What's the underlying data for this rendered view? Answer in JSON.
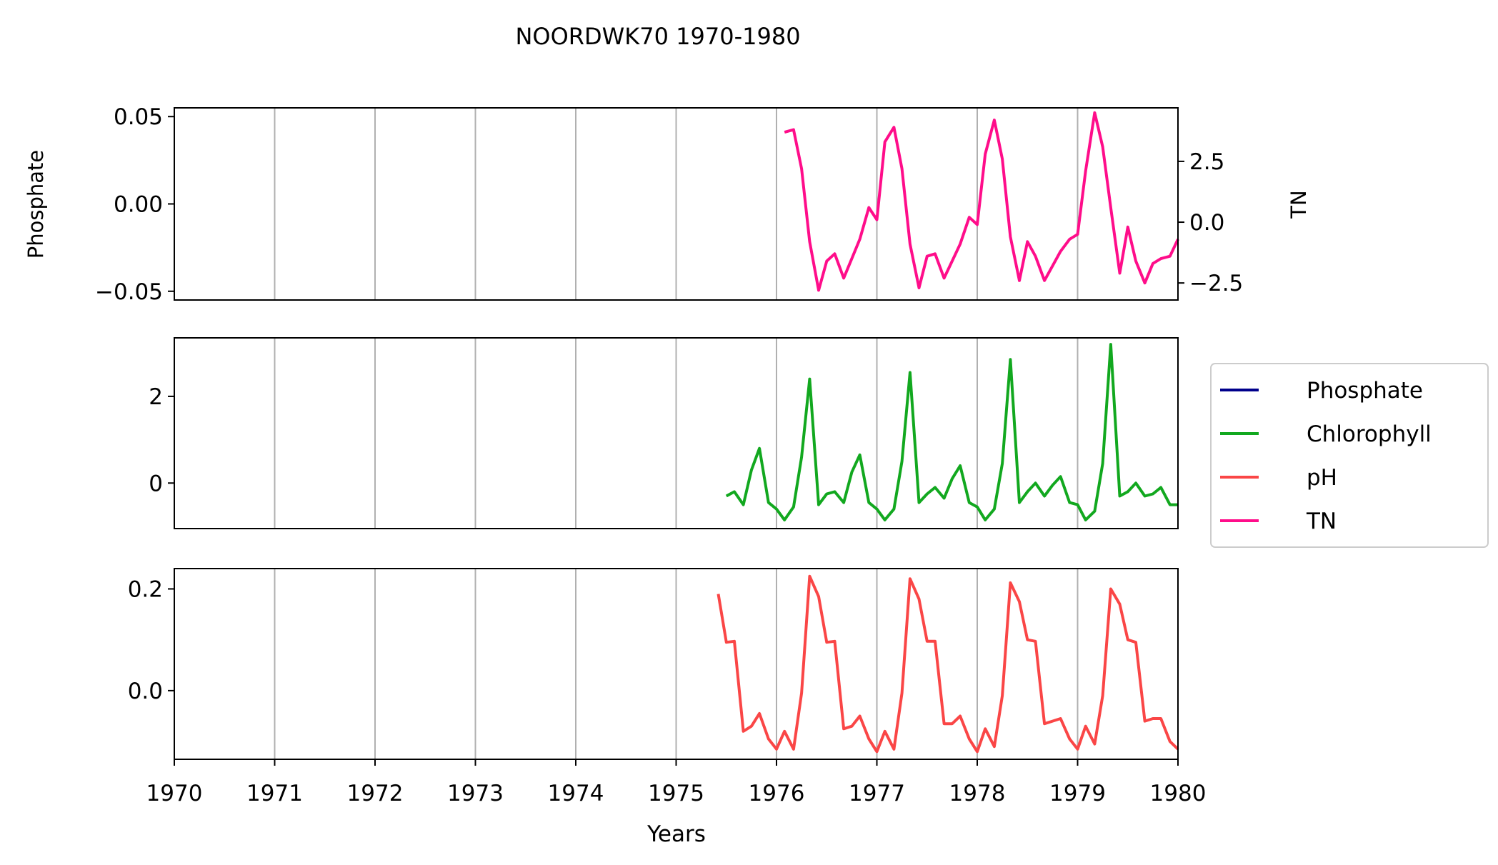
{
  "chart_data": {
    "type": "line",
    "title": "NOORDWK70 1970-1980",
    "xlabel": "Years",
    "xlim": [
      1970,
      1980
    ],
    "xticks": [
      "1970",
      "1971",
      "1972",
      "1973",
      "1974",
      "1975",
      "1976",
      "1977",
      "1978",
      "1979",
      "1980"
    ],
    "grid": "vertical",
    "legend_position": "right",
    "legend": [
      {
        "name": "Phosphate",
        "color": "#00008b"
      },
      {
        "name": "Chlorophyll",
        "color": "#12a81f"
      },
      {
        "name": "pH",
        "color": "#fa4646"
      },
      {
        "name": "TN",
        "color": "#ff0d8a"
      }
    ],
    "panels": [
      {
        "id": "top",
        "ylabel_left": "Phosphate",
        "ylabel_right": "TN",
        "ylim_left": [
          -0.055,
          0.055
        ],
        "yticks_left": [
          "0.05",
          "0.00",
          "−0.05"
        ],
        "ylim_right": [
          -3.2,
          4.7
        ],
        "yticks_right": [
          "2.5",
          "0.0",
          "−2.5"
        ],
        "series": [
          {
            "name": "TN",
            "axis": "right",
            "color": "#ff0d8a",
            "x": [
              1976.08,
              1976.17,
              1976.25,
              1976.33,
              1976.42,
              1976.5,
              1976.58,
              1976.67,
              1976.75,
              1976.83,
              1976.92,
              1977.0,
              1977.08,
              1977.17,
              1977.25,
              1977.33,
              1977.42,
              1977.5,
              1977.58,
              1977.67,
              1977.75,
              1977.83,
              1977.92,
              1978.0,
              1978.08,
              1978.17,
              1978.25,
              1978.33,
              1978.42,
              1978.5,
              1978.58,
              1978.67,
              1978.75,
              1978.83,
              1978.92,
              1979.0,
              1979.08,
              1979.17,
              1979.25,
              1979.33,
              1979.42,
              1979.5,
              1979.58,
              1979.67,
              1979.75,
              1979.83,
              1979.92,
              1980.0
            ],
            "y": [
              3.7,
              3.8,
              2.2,
              -0.8,
              -2.8,
              -1.6,
              -1.3,
              -2.3,
              -1.5,
              -0.7,
              0.6,
              0.1,
              3.3,
              3.9,
              2.2,
              -0.9,
              -2.7,
              -1.4,
              -1.3,
              -2.3,
              -1.6,
              -0.9,
              0.2,
              -0.1,
              2.8,
              4.2,
              2.6,
              -0.6,
              -2.4,
              -0.8,
              -1.4,
              -2.4,
              -1.8,
              -1.2,
              -0.7,
              -0.5,
              2.1,
              4.5,
              3.1,
              0.6,
              -2.1,
              -0.2,
              -1.6,
              -2.5,
              -1.7,
              -1.5,
              -1.4,
              -0.7
            ]
          }
        ]
      },
      {
        "id": "middle",
        "ylim": [
          -1.05,
          3.35
        ],
        "yticks": [
          "2",
          "0"
        ],
        "series": [
          {
            "name": "Chlorophyll",
            "color": "#12a81f",
            "x": [
              1975.5,
              1975.58,
              1975.67,
              1975.75,
              1975.83,
              1975.92,
              1976.0,
              1976.08,
              1976.17,
              1976.25,
              1976.33,
              1976.42,
              1976.5,
              1976.58,
              1976.67,
              1976.75,
              1976.83,
              1976.92,
              1977.0,
              1977.08,
              1977.17,
              1977.25,
              1977.33,
              1977.42,
              1977.5,
              1977.58,
              1977.67,
              1977.75,
              1977.83,
              1977.92,
              1978.0,
              1978.08,
              1978.17,
              1978.25,
              1978.33,
              1978.42,
              1978.5,
              1978.58,
              1978.67,
              1978.75,
              1978.83,
              1978.92,
              1979.0,
              1979.08,
              1979.17,
              1979.25,
              1979.33,
              1979.42,
              1979.5,
              1979.58,
              1979.67,
              1979.75,
              1979.83,
              1979.92,
              1980.0
            ],
            "y": [
              -0.3,
              -0.2,
              -0.5,
              0.3,
              0.8,
              -0.45,
              -0.6,
              -0.85,
              -0.55,
              0.6,
              2.4,
              -0.5,
              -0.25,
              -0.2,
              -0.45,
              0.25,
              0.65,
              -0.45,
              -0.6,
              -0.85,
              -0.6,
              0.5,
              2.55,
              -0.45,
              -0.25,
              -0.1,
              -0.35,
              0.1,
              0.4,
              -0.45,
              -0.55,
              -0.85,
              -0.6,
              0.45,
              2.85,
              -0.45,
              -0.2,
              0.0,
              -0.3,
              -0.05,
              0.15,
              -0.45,
              -0.5,
              -0.85,
              -0.65,
              0.45,
              3.2,
              -0.3,
              -0.2,
              0.0,
              -0.3,
              -0.25,
              -0.1,
              -0.5,
              -0.5
            ]
          }
        ]
      },
      {
        "id": "bottom",
        "ylim": [
          -0.135,
          0.24
        ],
        "yticks": [
          "0.2",
          "0.0"
        ],
        "series": [
          {
            "name": "pH",
            "color": "#fa4646",
            "x": [
              1975.42,
              1975.5,
              1975.58,
              1975.67,
              1975.75,
              1975.83,
              1975.92,
              1976.0,
              1976.08,
              1976.17,
              1976.25,
              1976.33,
              1976.42,
              1976.5,
              1976.58,
              1976.67,
              1976.75,
              1976.83,
              1976.92,
              1977.0,
              1977.08,
              1977.17,
              1977.25,
              1977.33,
              1977.42,
              1977.5,
              1977.58,
              1977.67,
              1977.75,
              1977.83,
              1977.92,
              1978.0,
              1978.08,
              1978.17,
              1978.25,
              1978.33,
              1978.42,
              1978.5,
              1978.58,
              1978.67,
              1978.75,
              1978.83,
              1978.92,
              1979.0,
              1979.08,
              1979.17,
              1979.25,
              1979.33,
              1979.42,
              1979.5,
              1979.58,
              1979.67,
              1979.75,
              1979.83,
              1979.92,
              1980.0
            ],
            "y": [
              0.19,
              0.095,
              0.097,
              -0.08,
              -0.07,
              -0.045,
              -0.095,
              -0.115,
              -0.08,
              -0.115,
              -0.005,
              0.225,
              0.185,
              0.095,
              0.097,
              -0.075,
              -0.07,
              -0.05,
              -0.095,
              -0.12,
              -0.08,
              -0.115,
              -0.005,
              0.22,
              0.18,
              0.097,
              0.097,
              -0.065,
              -0.065,
              -0.05,
              -0.095,
              -0.12,
              -0.075,
              -0.11,
              -0.01,
              0.212,
              0.175,
              0.1,
              0.097,
              -0.065,
              -0.06,
              -0.055,
              -0.095,
              -0.115,
              -0.07,
              -0.105,
              -0.01,
              0.2,
              0.17,
              0.1,
              0.095,
              -0.06,
              -0.055,
              -0.055,
              -0.1,
              -0.115
            ]
          }
        ]
      }
    ]
  }
}
